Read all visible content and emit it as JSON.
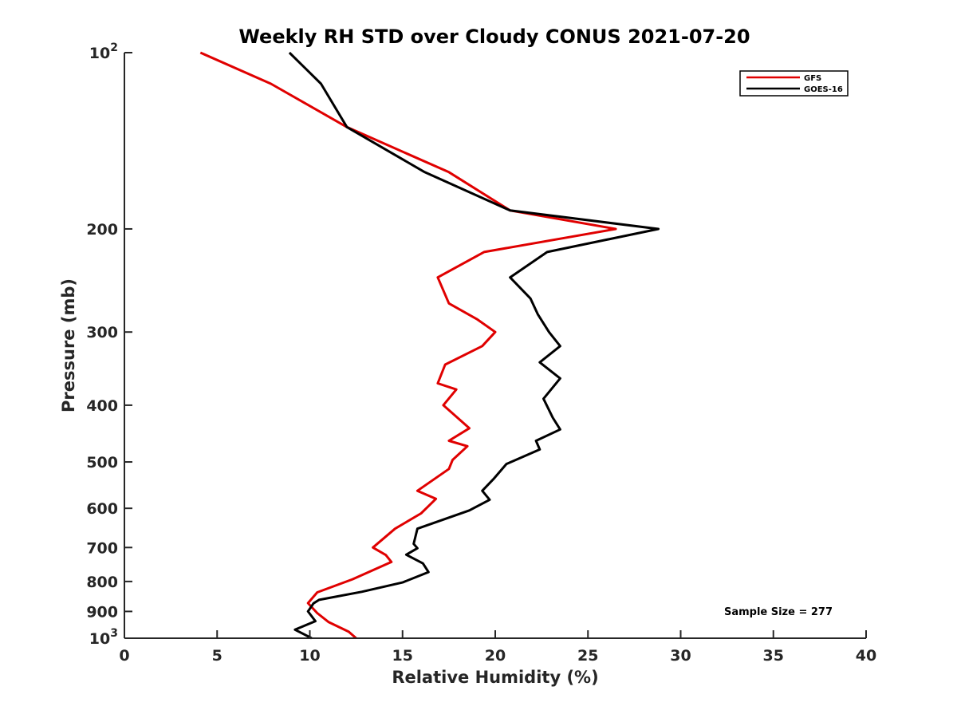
{
  "chart_data": {
    "type": "line",
    "title": "Weekly RH STD over Cloudy CONUS 2021-07-20",
    "xlabel": "Relative Humidity (%)",
    "ylabel": "Pressure (mb)",
    "xlim": [
      0,
      40
    ],
    "ylim": [
      100,
      1000
    ],
    "y_scale": "log",
    "y_reversed": true,
    "x_ticks": [
      0,
      5,
      10,
      15,
      20,
      25,
      30,
      35,
      40
    ],
    "y_ticks": [
      {
        "value": 100,
        "base": "10",
        "exp": "2"
      },
      {
        "value": 200,
        "label": "200"
      },
      {
        "value": 300,
        "label": "300"
      },
      {
        "value": 400,
        "label": "400"
      },
      {
        "value": 500,
        "label": "500"
      },
      {
        "value": 600,
        "label": "600"
      },
      {
        "value": 700,
        "label": "700"
      },
      {
        "value": 800,
        "label": "800"
      },
      {
        "value": 900,
        "label": "900"
      },
      {
        "value": 1000,
        "base": "10",
        "exp": "3"
      }
    ],
    "legend_position": "top-right",
    "grid": false,
    "annotation": "Sample Size = 277",
    "series": [
      {
        "name": "GFS",
        "color": "#e00000",
        "x": [
          4.1,
          7.9,
          12.0,
          17.5,
          20.8,
          26.5,
          19.4,
          16.9,
          17.5,
          19.0,
          20.0,
          19.3,
          17.3,
          16.9,
          17.9,
          17.2,
          18.6,
          17.5,
          18.5,
          17.7,
          17.5,
          15.8,
          16.8,
          16.0,
          14.6,
          13.4,
          14.1,
          14.4,
          12.3,
          10.4,
          9.9,
          10.4,
          11.0,
          12.1,
          12.5
        ],
        "y": [
          100,
          113,
          134,
          160,
          186,
          200,
          219,
          242,
          268,
          285,
          300,
          317,
          341,
          367,
          376,
          400,
          438,
          460,
          470,
          496,
          514,
          560,
          578,
          612,
          650,
          700,
          721,
          741,
          793,
          835,
          871,
          906,
          938,
          975,
          1000
        ]
      },
      {
        "name": "GOES-16",
        "color": "#000000",
        "x": [
          8.9,
          10.6,
          12.0,
          16.2,
          20.8,
          28.8,
          22.8,
          20.8,
          21.9,
          22.3,
          22.9,
          23.5,
          22.4,
          23.5,
          22.6,
          23.1,
          23.5,
          22.2,
          22.4,
          20.6,
          19.9,
          19.3,
          19.7,
          18.6,
          15.8,
          15.6,
          15.8,
          15.2,
          16.1,
          16.4,
          15.0,
          12.8,
          10.5,
          10.2,
          9.9,
          10.3,
          9.2,
          10.1
        ],
        "y": [
          100,
          113,
          134,
          160,
          186,
          200,
          219,
          242,
          263,
          280,
          300,
          317,
          338,
          360,
          390,
          420,
          440,
          460,
          476,
          504,
          535,
          560,
          580,
          605,
          650,
          690,
          702,
          720,
          745,
          771,
          803,
          833,
          860,
          872,
          900,
          935,
          967,
          1000
        ]
      }
    ]
  }
}
